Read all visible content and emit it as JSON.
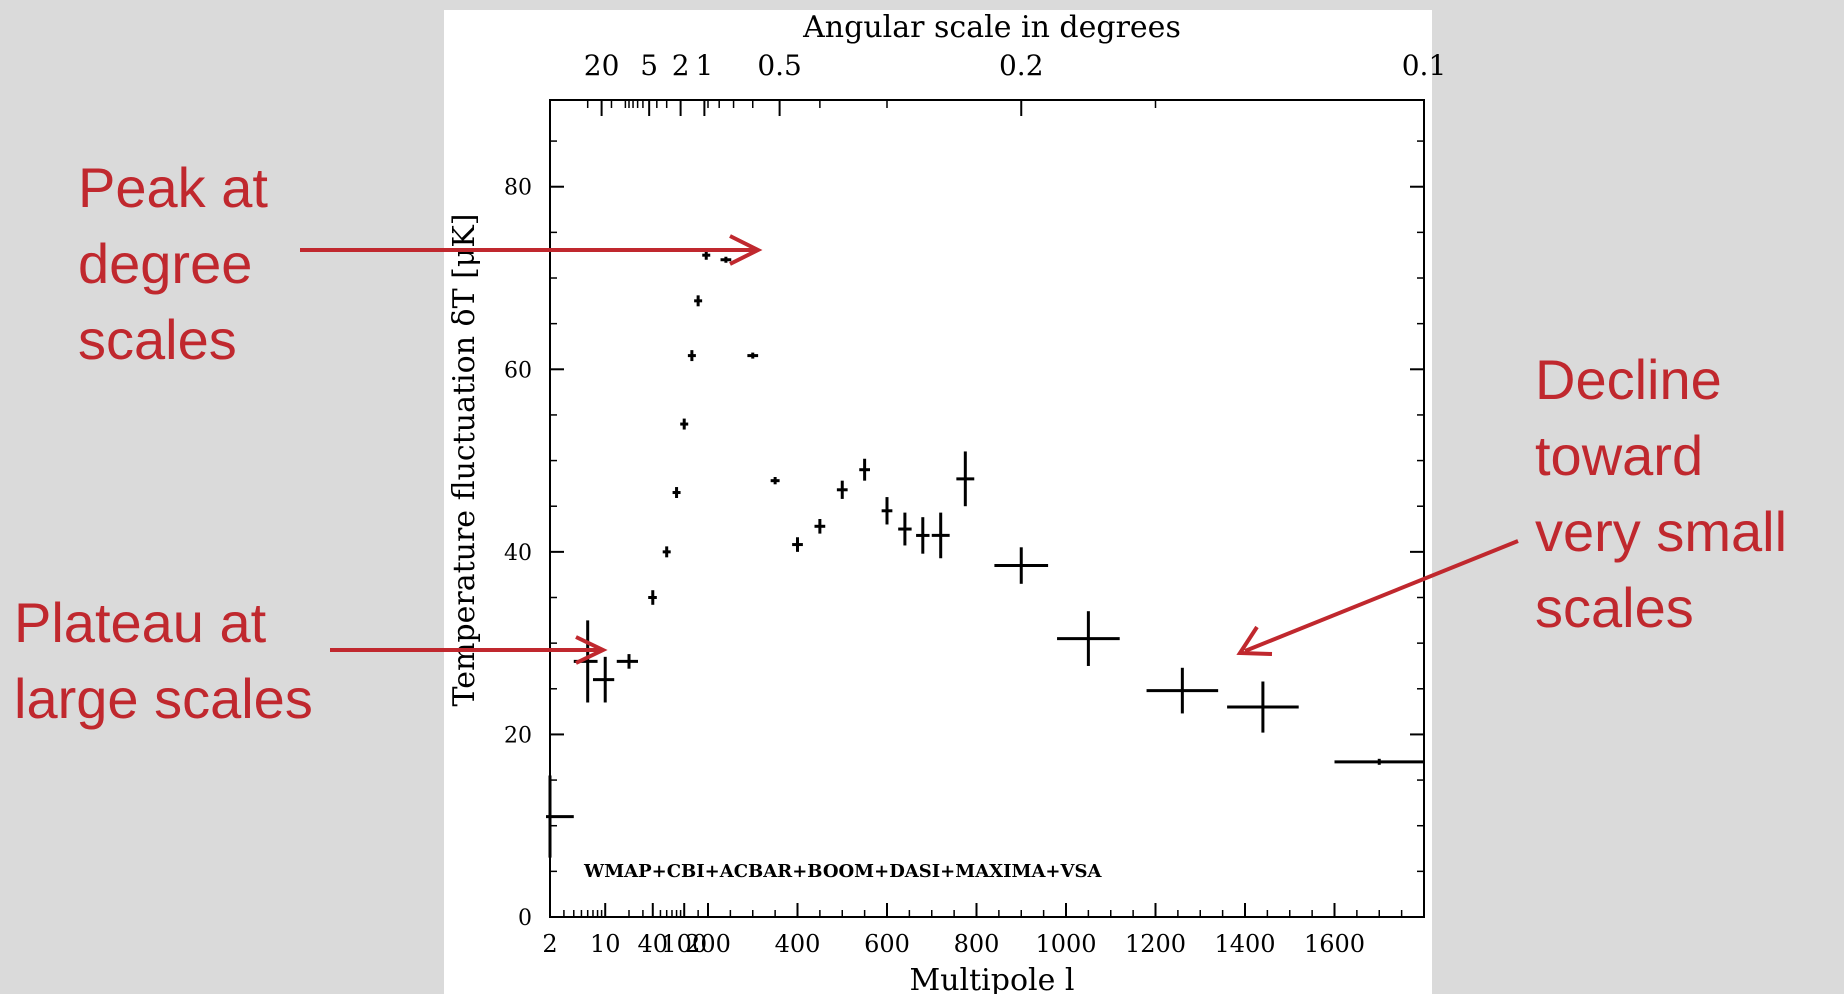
{
  "chart_data": {
    "type": "scatter",
    "xlabel": "Multipole l",
    "ylabel": "Temperature fluctuation δT [μK]",
    "top_axis_label": "Angular scale in degrees",
    "top_tick_labels": [
      "20",
      "5",
      "2",
      "1",
      "0.5",
      "0.2",
      "0.1"
    ],
    "x_tick_labels": [
      "2",
      "10",
      "40",
      "100",
      "200",
      "400",
      "600",
      "800",
      "1000",
      "1200",
      "1400",
      "1600"
    ],
    "y_tick_labels": [
      "0",
      "20",
      "40",
      "60",
      "80"
    ],
    "ylim": [
      0,
      89.5
    ],
    "grid": false,
    "dataset_label": "WMAP+CBI+ACBAR+BOOM+DASI+MAXIMA+VSA",
    "points": [
      {
        "l": 2,
        "y": 11,
        "dx": 2,
        "dy": 4.5
      },
      {
        "l": 6,
        "y": 28,
        "dx": 2,
        "dy": 4.5
      },
      {
        "l": 10,
        "y": 26,
        "dx": 3,
        "dy": 2.5
      },
      {
        "l": 20,
        "y": 28,
        "dx": 6,
        "dy": 0.8
      },
      {
        "l": 40,
        "y": 35,
        "dx": 5,
        "dy": 0.8
      },
      {
        "l": 60,
        "y": 40,
        "dx": 5,
        "dy": 0.6
      },
      {
        "l": 80,
        "y": 46.5,
        "dx": 5,
        "dy": 0.6
      },
      {
        "l": 100,
        "y": 54,
        "dx": 5,
        "dy": 0.6
      },
      {
        "l": 125,
        "y": 61.5,
        "dx": 5,
        "dy": 0.6
      },
      {
        "l": 150,
        "y": 67.5,
        "dx": 5,
        "dy": 0.6
      },
      {
        "l": 190,
        "y": 72.5,
        "dx": 10,
        "dy": 0.5
      },
      {
        "l": 240,
        "y": 72,
        "dx": 12,
        "dy": 0.3
      },
      {
        "l": 300,
        "y": 61.5,
        "dx": 12,
        "dy": 0.3
      },
      {
        "l": 350,
        "y": 47.8,
        "dx": 10,
        "dy": 0.4
      },
      {
        "l": 400,
        "y": 40.8,
        "dx": 12,
        "dy": 0.8
      },
      {
        "l": 450,
        "y": 42.8,
        "dx": 12,
        "dy": 0.8
      },
      {
        "l": 500,
        "y": 46.8,
        "dx": 12,
        "dy": 1.0
      },
      {
        "l": 550,
        "y": 49,
        "dx": 12,
        "dy": 1.2
      },
      {
        "l": 600,
        "y": 44.5,
        "dx": 12,
        "dy": 1.5
      },
      {
        "l": 640,
        "y": 42.5,
        "dx": 15,
        "dy": 1.8
      },
      {
        "l": 680,
        "y": 41.8,
        "dx": 15,
        "dy": 2.0
      },
      {
        "l": 720,
        "y": 41.8,
        "dx": 20,
        "dy": 2.5
      },
      {
        "l": 775,
        "y": 48,
        "dx": 20,
        "dy": 3.0
      },
      {
        "l": 900,
        "y": 38.5,
        "dx": 60,
        "dy": 2.0
      },
      {
        "l": 1050,
        "y": 30.5,
        "dx": 70,
        "dy": 3.0
      },
      {
        "l": 1260,
        "y": 24.8,
        "dx": 80,
        "dy": 2.5
      },
      {
        "l": 1440,
        "y": 23,
        "dx": 80,
        "dy": 2.8
      },
      {
        "l": 1700,
        "y": 17,
        "dx": 100,
        "dy": 0.3
      }
    ]
  },
  "annotations": {
    "peak": [
      "Peak at",
      "degree",
      "scales"
    ],
    "plateau": [
      "Plateau at",
      "large scales"
    ],
    "decline": [
      "Decline",
      "toward",
      "very small",
      "scales"
    ]
  },
  "colors": {
    "background": "#dadada",
    "panel": "#ffffff",
    "annotation": "#c0282e",
    "ink": "#000000"
  }
}
